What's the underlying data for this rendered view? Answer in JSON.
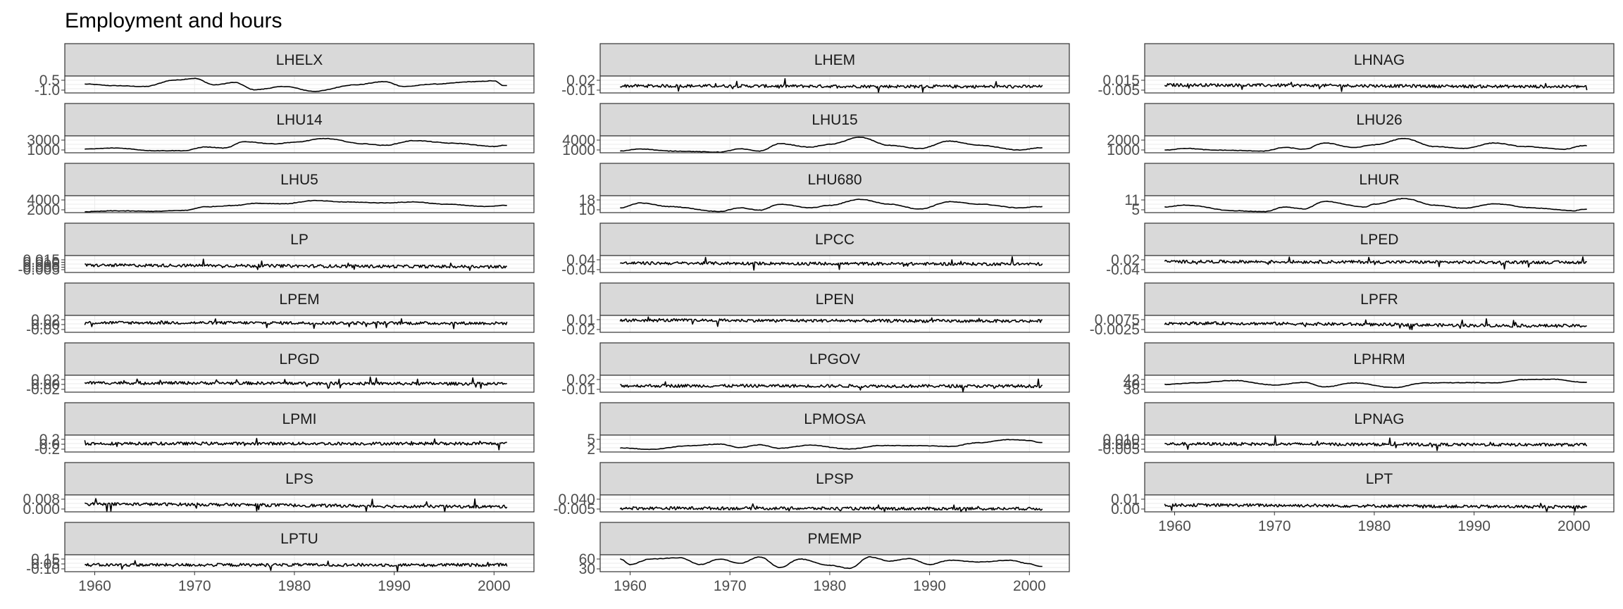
{
  "chart_data": {
    "type": "line",
    "title": "Employment and hours",
    "xlabel": "",
    "ylabel": "",
    "xlim": [
      1957,
      2004
    ],
    "x_ticks": [
      "1960",
      "1970",
      "1980",
      "1990",
      "2000"
    ],
    "grid": true,
    "facets": [
      {
        "name": "LHELX",
        "y_ticks": [
          "0.5",
          "-1.0"
        ],
        "ylim": [
          -1.2,
          0.9
        ],
        "style": "smooth",
        "points": [
          [
            1959,
            -0.1
          ],
          [
            1962,
            -0.3
          ],
          [
            1965,
            -0.4
          ],
          [
            1968,
            0.4
          ],
          [
            1970,
            0.6
          ],
          [
            1972,
            -0.2
          ],
          [
            1974,
            0.1
          ],
          [
            1976,
            -0.8
          ],
          [
            1979,
            -0.4
          ],
          [
            1982,
            -1.0
          ],
          [
            1986,
            -0.2
          ],
          [
            1989,
            0.2
          ],
          [
            1991,
            -0.4
          ],
          [
            1994,
            -0.1
          ],
          [
            1998,
            0.2
          ],
          [
            2000,
            0.3
          ],
          [
            2001,
            -0.3
          ]
        ]
      },
      {
        "name": "LHEM",
        "y_ticks": [
          "0.02",
          "-0.01"
        ],
        "ylim": [
          -0.018,
          0.03
        ],
        "style": "noise",
        "points": [
          [
            1959,
            0.002
          ],
          [
            2001,
            0.0
          ]
        ]
      },
      {
        "name": "LHNAG",
        "y_ticks": [
          "0.015",
          "-0.005"
        ],
        "ylim": [
          -0.012,
          0.02
        ],
        "style": "noise",
        "points": [
          [
            1959,
            0.003
          ],
          [
            2001,
            0.0
          ]
        ]
      },
      {
        "name": "LHU14",
        "y_ticks": [
          "3000",
          "1000"
        ],
        "ylim": [
          600,
          3800
        ],
        "style": "smooth",
        "points": [
          [
            1959,
            1300
          ],
          [
            1962,
            1500
          ],
          [
            1966,
            1000
          ],
          [
            1969,
            1000
          ],
          [
            1971,
            1700
          ],
          [
            1973,
            1500
          ],
          [
            1975,
            2700
          ],
          [
            1978,
            2300
          ],
          [
            1980,
            2600
          ],
          [
            1983,
            3300
          ],
          [
            1987,
            2300
          ],
          [
            1989,
            2000
          ],
          [
            1992,
            2900
          ],
          [
            1996,
            2400
          ],
          [
            2000,
            1800
          ],
          [
            2001,
            2000
          ]
        ]
      },
      {
        "name": "LHU15",
        "y_ticks": [
          "4000",
          "1000"
        ],
        "ylim": [
          400,
          5200
        ],
        "style": "smooth",
        "points": [
          [
            1959,
            900
          ],
          [
            1961,
            1500
          ],
          [
            1964,
            900
          ],
          [
            1969,
            600
          ],
          [
            1971,
            1500
          ],
          [
            1973,
            900
          ],
          [
            1975,
            3000
          ],
          [
            1978,
            2000
          ],
          [
            1980,
            2800
          ],
          [
            1983,
            4800
          ],
          [
            1986,
            2500
          ],
          [
            1989,
            1600
          ],
          [
            1992,
            3700
          ],
          [
            1995,
            2500
          ],
          [
            1999,
            1200
          ],
          [
            2001,
            1800
          ]
        ]
      },
      {
        "name": "LHU26",
        "y_ticks": [
          "2000",
          "1000"
        ],
        "ylim": [
          700,
          2600
        ],
        "style": "smooth",
        "points": [
          [
            1959,
            1000
          ],
          [
            1961,
            1200
          ],
          [
            1964,
            1000
          ],
          [
            1969,
            900
          ],
          [
            1971,
            1300
          ],
          [
            1973,
            1100
          ],
          [
            1975,
            1800
          ],
          [
            1978,
            1300
          ],
          [
            1980,
            1600
          ],
          [
            1983,
            2300
          ],
          [
            1986,
            1400
          ],
          [
            1989,
            1200
          ],
          [
            1992,
            1800
          ],
          [
            1995,
            1400
          ],
          [
            1999,
            1100
          ],
          [
            2001,
            1500
          ]
        ]
      },
      {
        "name": "LHU5",
        "y_ticks": [
          "4000",
          "2000"
        ],
        "ylim": [
          1200,
          5000
        ],
        "style": "smooth",
        "points": [
          [
            1959,
            1400
          ],
          [
            1962,
            1600
          ],
          [
            1966,
            1500
          ],
          [
            1969,
            1700
          ],
          [
            1971,
            2500
          ],
          [
            1974,
            2800
          ],
          [
            1976,
            3300
          ],
          [
            1979,
            3200
          ],
          [
            1982,
            3900
          ],
          [
            1985,
            3600
          ],
          [
            1989,
            3400
          ],
          [
            1992,
            3600
          ],
          [
            1995,
            3100
          ],
          [
            1999,
            2600
          ],
          [
            2001,
            2800
          ]
        ]
      },
      {
        "name": "LHU680",
        "y_ticks": [
          "18",
          "10"
        ],
        "ylim": [
          8,
          22
        ],
        "style": "smooth",
        "points": [
          [
            1959,
            12
          ],
          [
            1961,
            16
          ],
          [
            1964,
            13
          ],
          [
            1969,
            9
          ],
          [
            1971,
            12
          ],
          [
            1973,
            10
          ],
          [
            1975,
            15
          ],
          [
            1978,
            12
          ],
          [
            1980,
            14
          ],
          [
            1983,
            19
          ],
          [
            1986,
            15
          ],
          [
            1989,
            11
          ],
          [
            1992,
            17
          ],
          [
            1995,
            15
          ],
          [
            1999,
            12
          ],
          [
            2001,
            13
          ]
        ]
      },
      {
        "name": "LHUR",
        "y_ticks": [
          "11",
          "5"
        ],
        "ylim": [
          3,
          12
        ],
        "style": "smooth",
        "points": [
          [
            1959,
            6
          ],
          [
            1961,
            7
          ],
          [
            1966,
            4
          ],
          [
            1969,
            3.5
          ],
          [
            1971,
            6
          ],
          [
            1973,
            5
          ],
          [
            1975,
            9
          ],
          [
            1979,
            6
          ],
          [
            1980,
            7.5
          ],
          [
            1983,
            10.5
          ],
          [
            1986,
            7
          ],
          [
            1989,
            5.3
          ],
          [
            1992,
            7.7
          ],
          [
            1996,
            5.5
          ],
          [
            2000,
            4
          ],
          [
            2001,
            4.8
          ]
        ]
      },
      {
        "name": "LP",
        "y_ticks": [
          "0.015",
          "0.010",
          "0.005",
          "0.000",
          "-0.005"
        ],
        "ylim": [
          -0.008,
          0.018
        ],
        "style": "noise",
        "points": [
          [
            1959,
            0.003
          ],
          [
            2001,
            0.001
          ]
        ]
      },
      {
        "name": "LPCC",
        "y_ticks": [
          "0.04",
          "-0.04"
        ],
        "ylim": [
          -0.05,
          0.05
        ],
        "style": "noise",
        "points": [
          [
            1959,
            0.005
          ],
          [
            2001,
            0.0
          ]
        ]
      },
      {
        "name": "LPED",
        "y_ticks": [
          "0.02",
          "-0.04"
        ],
        "ylim": [
          -0.045,
          0.03
        ],
        "style": "noise",
        "points": [
          [
            1959,
            0.003
          ],
          [
            2001,
            0.0
          ]
        ]
      },
      {
        "name": "LPEM",
        "y_ticks": [
          "0.02",
          "0.00",
          "-0.03"
        ],
        "ylim": [
          -0.035,
          0.03
        ],
        "style": "noise",
        "points": [
          [
            1959,
            0.002
          ],
          [
            2001,
            0.0
          ]
        ]
      },
      {
        "name": "LPEN",
        "y_ticks": [
          "0.01",
          "-0.02"
        ],
        "ylim": [
          -0.03,
          0.015
        ],
        "style": "noise",
        "points": [
          [
            1959,
            0.002
          ],
          [
            2001,
            0.0
          ]
        ]
      },
      {
        "name": "LPFR",
        "y_ticks": [
          "0.0075",
          "-0.0025"
        ],
        "ylim": [
          -0.004,
          0.009
        ],
        "style": "noise",
        "points": [
          [
            1959,
            0.003
          ],
          [
            2001,
            0.001
          ]
        ]
      },
      {
        "name": "LPGD",
        "y_ticks": [
          "0.02",
          "0.00",
          "-0.02"
        ],
        "ylim": [
          -0.03,
          0.03
        ],
        "style": "noise",
        "points": [
          [
            1959,
            0.003
          ],
          [
            2001,
            0.0
          ]
        ]
      },
      {
        "name": "LPGOV",
        "y_ticks": [
          "0.02",
          "-0.01"
        ],
        "ylim": [
          -0.015,
          0.03
        ],
        "style": "noise",
        "points": [
          [
            1959,
            0.002
          ],
          [
            2001,
            0.001
          ]
        ]
      },
      {
        "name": "LPHRM",
        "y_ticks": [
          "42",
          "40",
          "38"
        ],
        "ylim": [
          37.5,
          43
        ],
        "style": "smooth",
        "points": [
          [
            1959,
            40
          ],
          [
            1962,
            40.5
          ],
          [
            1966,
            41.3
          ],
          [
            1970,
            39.8
          ],
          [
            1973,
            40.7
          ],
          [
            1975,
            39.2
          ],
          [
            1978,
            40.5
          ],
          [
            1982,
            39
          ],
          [
            1985,
            40.5
          ],
          [
            1990,
            40.6
          ],
          [
            1992,
            40.5
          ],
          [
            1995,
            41.6
          ],
          [
            1998,
            41.7
          ],
          [
            2001,
            40.7
          ]
        ]
      },
      {
        "name": "LPMI",
        "y_ticks": [
          "0.2",
          "0.0",
          "-0.2"
        ],
        "ylim": [
          -0.3,
          0.3
        ],
        "style": "noise",
        "points": [
          [
            1959,
            0.0
          ],
          [
            2001,
            0.0
          ]
        ]
      },
      {
        "name": "LPMOSA",
        "y_ticks": [
          "5",
          "2"
        ],
        "ylim": [
          1.5,
          6
        ],
        "style": "smooth",
        "points": [
          [
            1959,
            2.6
          ],
          [
            1962,
            2.2
          ],
          [
            1966,
            3.2
          ],
          [
            1969,
            3.6
          ],
          [
            1971,
            2.7
          ],
          [
            1973,
            3.4
          ],
          [
            1975,
            2.5
          ],
          [
            1978,
            3.3
          ],
          [
            1982,
            2.3
          ],
          [
            1985,
            3.2
          ],
          [
            1989,
            3.2
          ],
          [
            1992,
            3.0
          ],
          [
            1995,
            4.0
          ],
          [
            1998,
            4.8
          ],
          [
            2000,
            4.6
          ],
          [
            2001,
            4.0
          ]
        ]
      },
      {
        "name": "LPNAG",
        "y_ticks": [
          "0.010",
          "0.005",
          "-0.005"
        ],
        "ylim": [
          -0.008,
          0.013
        ],
        "style": "noise",
        "points": [
          [
            1959,
            0.002
          ],
          [
            2001,
            0.001
          ]
        ]
      },
      {
        "name": "LPS",
        "y_ticks": [
          "0.008",
          "0.000"
        ],
        "ylim": [
          -0.002,
          0.011
        ],
        "style": "noise",
        "points": [
          [
            1959,
            0.004
          ],
          [
            2001,
            0.002
          ]
        ]
      },
      {
        "name": "LPSP",
        "y_ticks": [
          "0.040",
          "-0.005"
        ],
        "ylim": [
          -0.01,
          0.05
        ],
        "style": "noise",
        "points": [
          [
            1959,
            0.003
          ],
          [
            2001,
            0.001
          ]
        ]
      },
      {
        "name": "LPT",
        "y_ticks": [
          "0.01",
          "0.00"
        ],
        "ylim": [
          -0.005,
          0.015
        ],
        "style": "noise",
        "points": [
          [
            1959,
            0.003
          ],
          [
            2001,
            0.001
          ]
        ]
      },
      {
        "name": "LPTU",
        "y_ticks": [
          "0.15",
          "0.05",
          "-0.10"
        ],
        "ylim": [
          -0.12,
          0.18
        ],
        "style": "noise",
        "points": [
          [
            1959,
            0.0
          ],
          [
            2001,
            0.0
          ]
        ]
      },
      {
        "name": "PMEMP",
        "y_ticks": [
          "60",
          "30"
        ],
        "ylim": [
          25,
          65
        ],
        "style": "smooth",
        "points": [
          [
            1959,
            55
          ],
          [
            1960,
            42
          ],
          [
            1962,
            55
          ],
          [
            1965,
            58
          ],
          [
            1967,
            42
          ],
          [
            1969,
            55
          ],
          [
            1971,
            45
          ],
          [
            1973,
            60
          ],
          [
            1975,
            35
          ],
          [
            1977,
            55
          ],
          [
            1980,
            40
          ],
          [
            1982,
            33
          ],
          [
            1984,
            60
          ],
          [
            1986,
            50
          ],
          [
            1988,
            56
          ],
          [
            1990,
            42
          ],
          [
            1992,
            52
          ],
          [
            1995,
            48
          ],
          [
            1998,
            52
          ],
          [
            2000,
            44
          ],
          [
            2001,
            38
          ]
        ]
      }
    ]
  }
}
